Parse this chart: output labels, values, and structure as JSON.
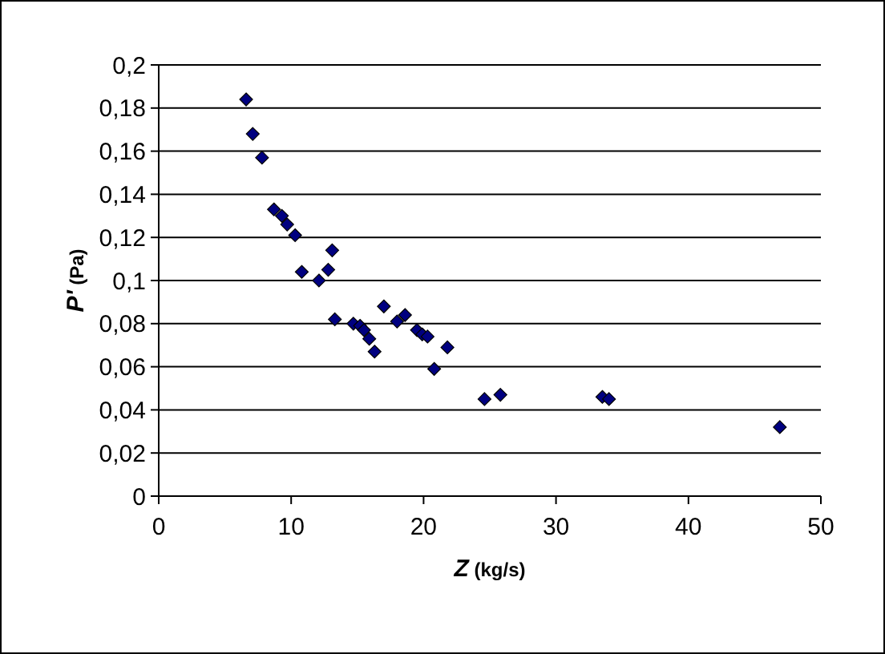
{
  "chart_data": {
    "type": "scatter",
    "xlabel": "Z (kg/s)",
    "ylabel": "P' (Pa)",
    "marker": "diamond",
    "grid": "y",
    "xlim": [
      0,
      50
    ],
    "xticks": [
      0,
      10,
      20,
      30,
      40,
      50
    ],
    "ylim": [
      0,
      0.2
    ],
    "yticks": [
      0,
      {
        "value": 0.02,
        "label": "0,02"
      },
      {
        "value": 0.04,
        "label": "0,04"
      },
      {
        "value": 0.06,
        "label": "0,06"
      },
      {
        "value": 0.08,
        "label": "0,08"
      },
      {
        "value": 0.1,
        "label": "0,1"
      },
      {
        "value": 0.12,
        "label": "0,12"
      },
      {
        "value": 0.14,
        "label": "0,14"
      },
      {
        "value": 0.16,
        "label": "0,16"
      },
      {
        "value": 0.18,
        "label": "0,18"
      },
      {
        "value": 0.2,
        "label": "0,2"
      }
    ],
    "series": [
      {
        "color": "#000080",
        "x": [
          6.6,
          7.1,
          7.8,
          8.7,
          9.3,
          9.7,
          10.3,
          10.8,
          12.1,
          12.8,
          13.1,
          13.3,
          14.7,
          15.2,
          15.5,
          15.9,
          16.3,
          17.0,
          18.0,
          18.6,
          19.5,
          19.9,
          20.3,
          20.8,
          21.8,
          24.6,
          25.8,
          33.5,
          34.0,
          46.9
        ],
        "values": [
          0.184,
          0.168,
          0.157,
          0.133,
          0.13,
          0.126,
          0.121,
          0.104,
          0.1,
          0.105,
          0.114,
          0.082,
          0.08,
          0.079,
          0.077,
          0.073,
          0.067,
          0.088,
          0.081,
          0.084,
          0.077,
          0.075,
          0.074,
          0.059,
          0.069,
          0.045,
          0.047,
          0.046,
          0.045,
          0.032
        ]
      }
    ]
  }
}
